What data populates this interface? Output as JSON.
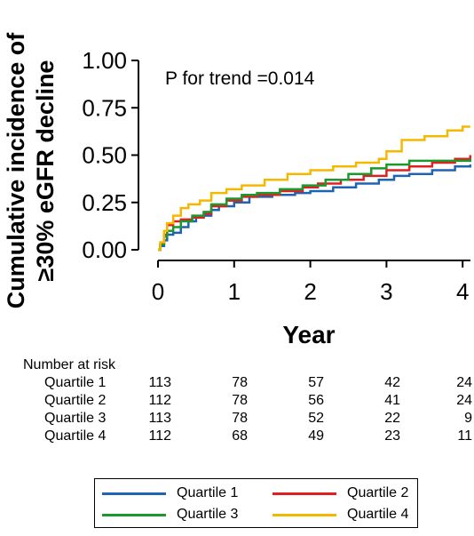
{
  "chart_data": {
    "type": "line",
    "ylabel_line1": "Cumulative incidence of",
    "ylabel_line2": "≥30% eGFR decline",
    "xlabel": "Year",
    "annotation": "P for trend =0.014",
    "xlim": [
      0,
      4.1
    ],
    "ylim": [
      0,
      1
    ],
    "x_ticks": [
      "0",
      "1",
      "2",
      "3",
      "4"
    ],
    "y_ticks": [
      "0.00",
      "0.25",
      "0.50",
      "0.75",
      "1.00"
    ],
    "legend_position": "bottom",
    "series": [
      {
        "name": "Quartile 1",
        "color": "#1f63b4",
        "x": [
          0,
          0.03,
          0.08,
          0.12,
          0.2,
          0.3,
          0.4,
          0.5,
          0.6,
          0.7,
          0.8,
          1.0,
          1.2,
          1.5,
          1.8,
          2.0,
          2.3,
          2.6,
          2.9,
          3.1,
          3.3,
          3.6,
          3.9,
          4.1
        ],
        "y": [
          0,
          0.02,
          0.05,
          0.08,
          0.09,
          0.12,
          0.15,
          0.17,
          0.18,
          0.21,
          0.23,
          0.25,
          0.28,
          0.29,
          0.3,
          0.31,
          0.33,
          0.35,
          0.37,
          0.39,
          0.4,
          0.42,
          0.44,
          0.45
        ]
      },
      {
        "name": "Quartile 2",
        "color": "#e02020",
        "x": [
          0,
          0.03,
          0.08,
          0.12,
          0.2,
          0.3,
          0.45,
          0.6,
          0.7,
          0.9,
          1.1,
          1.3,
          1.6,
          1.9,
          2.1,
          2.4,
          2.7,
          3.0,
          3.3,
          3.6,
          3.9,
          4.1
        ],
        "y": [
          0,
          0.03,
          0.08,
          0.13,
          0.15,
          0.16,
          0.17,
          0.19,
          0.23,
          0.26,
          0.28,
          0.29,
          0.31,
          0.33,
          0.35,
          0.37,
          0.39,
          0.42,
          0.44,
          0.46,
          0.48,
          0.5
        ]
      },
      {
        "name": "Quartile 3",
        "color": "#1a9a2e",
        "x": [
          0,
          0.03,
          0.08,
          0.12,
          0.2,
          0.3,
          0.45,
          0.6,
          0.7,
          0.9,
          1.1,
          1.3,
          1.6,
          1.9,
          2.2,
          2.5,
          2.8,
          3.0,
          3.3,
          3.6,
          4.1
        ],
        "y": [
          0,
          0.03,
          0.07,
          0.1,
          0.12,
          0.15,
          0.18,
          0.2,
          0.24,
          0.27,
          0.29,
          0.3,
          0.32,
          0.34,
          0.37,
          0.4,
          0.43,
          0.45,
          0.47,
          0.47,
          0.48
        ]
      },
      {
        "name": "Quartile 4",
        "color": "#f5b800",
        "x": [
          0,
          0.03,
          0.08,
          0.12,
          0.2,
          0.3,
          0.4,
          0.55,
          0.7,
          0.9,
          1.1,
          1.4,
          1.7,
          2.0,
          2.3,
          2.6,
          2.9,
          3.0,
          3.2,
          3.5,
          3.8,
          4.0,
          4.1
        ],
        "y": [
          0,
          0.04,
          0.1,
          0.14,
          0.18,
          0.22,
          0.24,
          0.26,
          0.3,
          0.32,
          0.34,
          0.37,
          0.4,
          0.42,
          0.44,
          0.46,
          0.48,
          0.52,
          0.58,
          0.6,
          0.63,
          0.65,
          0.65
        ]
      }
    ]
  },
  "risk_table": {
    "title": "Number  at risk",
    "columns": [
      "0",
      "1",
      "2",
      "3",
      "4"
    ],
    "rows": [
      {
        "label": "Quartile 1",
        "values": [
          "113",
          "78",
          "57",
          "42",
          "24"
        ]
      },
      {
        "label": "Quartile 2",
        "values": [
          "112",
          "78",
          "56",
          "41",
          "24"
        ]
      },
      {
        "label": "Quartile 3",
        "values": [
          "113",
          "78",
          "52",
          "22",
          "9"
        ]
      },
      {
        "label": "Quartile 4",
        "values": [
          "112",
          "68",
          "49",
          "23",
          "11"
        ]
      }
    ]
  },
  "legend": {
    "items": [
      {
        "label": "Quartile 1",
        "color": "#1f63b4"
      },
      {
        "label": "Quartile 2",
        "color": "#e02020"
      },
      {
        "label": "Quartile 3",
        "color": "#1a9a2e"
      },
      {
        "label": "Quartile 4",
        "color": "#f5b800"
      }
    ]
  }
}
